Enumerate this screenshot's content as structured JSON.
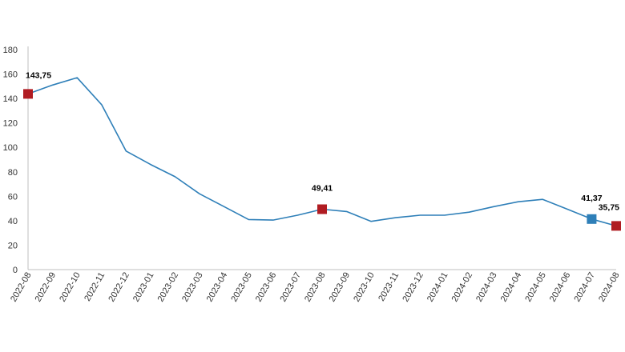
{
  "chart_data": {
    "type": "line",
    "categories": [
      "2022-08",
      "2022-09",
      "2022-10",
      "2022-11",
      "2022-12",
      "2023-01",
      "2023-02",
      "2023-03",
      "2023-04",
      "2023-05",
      "2023-06",
      "2023-07",
      "2023-08",
      "2023-09",
      "2023-10",
      "2023-11",
      "2023-12",
      "2024-01",
      "2024-02",
      "2024-03",
      "2024-04",
      "2024-05",
      "2024-06",
      "2024-07",
      "2024-08"
    ],
    "series": [
      {
        "values": [
          143.75,
          151,
          157,
          135,
          97,
          86,
          76,
          62,
          51.5,
          41,
          40.5,
          44.5,
          49.41,
          47.5,
          39.5,
          42.5,
          44.5,
          44.5,
          47,
          51.5,
          55.5,
          57.5,
          49.5,
          41.37,
          35.75
        ],
        "color": "#2e7fb8"
      }
    ],
    "ylim": [
      0,
      180
    ],
    "yticks": [
      0,
      20,
      40,
      60,
      80,
      100,
      120,
      140,
      160,
      180
    ],
    "grid": false,
    "markers": [
      {
        "index": 0,
        "label": "143,75",
        "color": "#b01c22"
      },
      {
        "index": 12,
        "label": "49,41",
        "color": "#b01c22"
      },
      {
        "index": 23,
        "label": "41,37",
        "color": "#2e7fb8"
      },
      {
        "index": 24,
        "label": "35,75",
        "color": "#b01c22"
      }
    ]
  }
}
